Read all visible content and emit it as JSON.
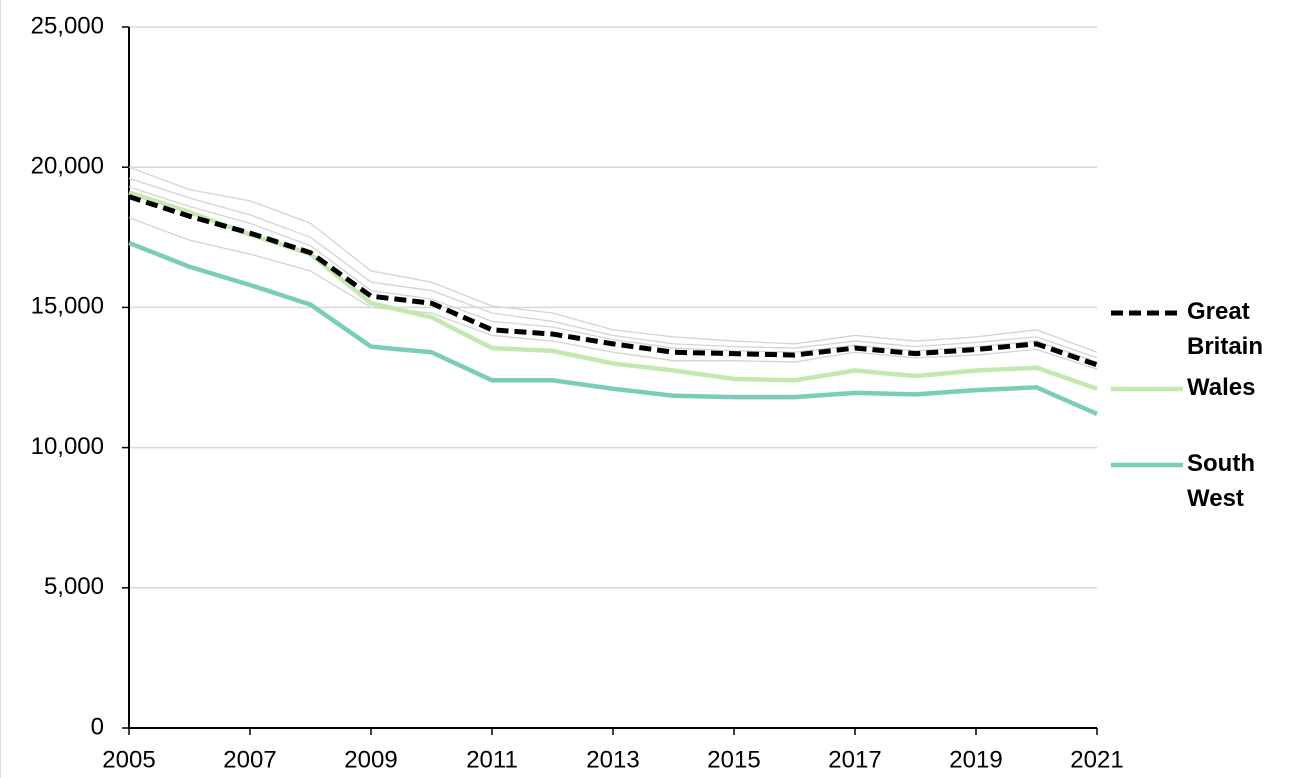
{
  "chart_data": {
    "type": "line",
    "x": [
      2005,
      2006,
      2007,
      2008,
      2009,
      2010,
      2011,
      2012,
      2013,
      2014,
      2015,
      2016,
      2017,
      2018,
      2019,
      2020,
      2021
    ],
    "xlim": [
      2005,
      2021
    ],
    "xticks": [
      2005,
      2007,
      2009,
      2011,
      2013,
      2015,
      2017,
      2019,
      2021
    ],
    "ylim": [
      0,
      25000
    ],
    "yticks": [
      0,
      {
        "value": 5000,
        "label": "5,000"
      },
      {
        "value": 10000,
        "label": "10,000"
      },
      {
        "value": 15000,
        "label": "15,000"
      },
      {
        "value": 20000,
        "label": "20,000"
      },
      {
        "value": 25000,
        "label": "25,000"
      }
    ],
    "grid": true,
    "series": [
      {
        "color": "#d4d4d4",
        "values": [
          20000,
          19200,
          18800,
          18000,
          16300,
          15900,
          15050,
          14800,
          14200,
          13950,
          13800,
          13700,
          14000,
          13800,
          13950,
          14200,
          13400
        ]
      },
      {
        "color": "#d4d4d4",
        "values": [
          19600,
          18900,
          18300,
          17500,
          15900,
          15600,
          14800,
          14500,
          14000,
          13700,
          13600,
          13550,
          13800,
          13600,
          13750,
          13950,
          13200
        ]
      },
      {
        "color": "#d4d4d4",
        "values": [
          19300,
          18600,
          18000,
          17200,
          15600,
          15300,
          14500,
          14300,
          13850,
          13550,
          13450,
          13400,
          13650,
          13450,
          13600,
          13800,
          13050
        ]
      },
      {
        "color": "#d4d4d4",
        "values": [
          18200,
          17400,
          16900,
          16300,
          15000,
          14800,
          14000,
          13800,
          13400,
          13100,
          13100,
          13050,
          13400,
          13200,
          13300,
          13500,
          12800
        ]
      },
      {
        "name": "South West",
        "color": "#7acdb8",
        "values": [
          17300,
          16450,
          15800,
          15100,
          13600,
          13400,
          12400,
          12400,
          12100,
          11850,
          11800,
          11800,
          11950,
          11900,
          12050,
          12150,
          11200
        ]
      },
      {
        "name": "Wales",
        "color": "#c5e8b0",
        "values": [
          19100,
          18400,
          17600,
          16900,
          15150,
          14650,
          13550,
          13450,
          13000,
          12750,
          12450,
          12400,
          12750,
          12550,
          12750,
          12850,
          12100
        ]
      },
      {
        "name": "Great Britain",
        "color": "#000000",
        "dashed": true,
        "values": [
          18950,
          18250,
          17650,
          16950,
          15400,
          15150,
          14200,
          14050,
          13700,
          13400,
          13350,
          13300,
          13550,
          13350,
          13500,
          13700,
          12950
        ]
      }
    ]
  }
}
